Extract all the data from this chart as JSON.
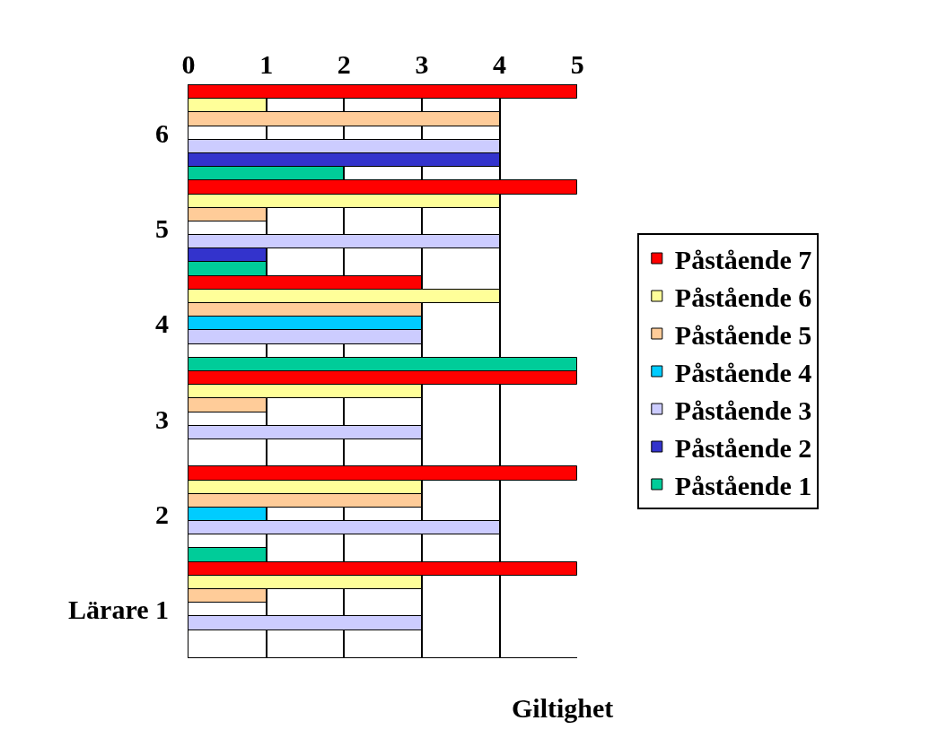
{
  "chart_data": {
    "type": "bar",
    "orientation": "horizontal",
    "xlabel": "Giltighet",
    "categories": [
      "6",
      "5",
      "4",
      "3",
      "2",
      "Lärare 1"
    ],
    "series": [
      {
        "name": "Påstående 7",
        "color": "#ff0000",
        "values": [
          5,
          5,
          3,
          5,
          5,
          5
        ]
      },
      {
        "name": "Påstående 6",
        "color": "#ffff99",
        "values": [
          1,
          4,
          4,
          3,
          3,
          3
        ]
      },
      {
        "name": "Påstående 5",
        "color": "#ffcc99",
        "values": [
          4,
          1,
          3,
          1,
          3,
          1
        ]
      },
      {
        "name": "Påstående 4",
        "color": "#00ccff",
        "values": [
          null,
          null,
          3,
          null,
          1,
          null
        ]
      },
      {
        "name": "Påstående 3",
        "color": "#ccccff",
        "values": [
          4,
          4,
          3,
          3,
          4,
          3
        ]
      },
      {
        "name": "Påstående 2",
        "color": "#3333cc",
        "values": [
          4,
          1,
          null,
          null,
          null,
          null
        ]
      },
      {
        "name": "Påstående 1",
        "color": "#00cc99",
        "values": [
          2,
          1,
          5,
          null,
          1,
          null
        ]
      }
    ],
    "xlim": [
      0,
      5
    ],
    "xticks": [
      0,
      1,
      2,
      3,
      4,
      5
    ],
    "grid": "x",
    "legend": "right"
  }
}
